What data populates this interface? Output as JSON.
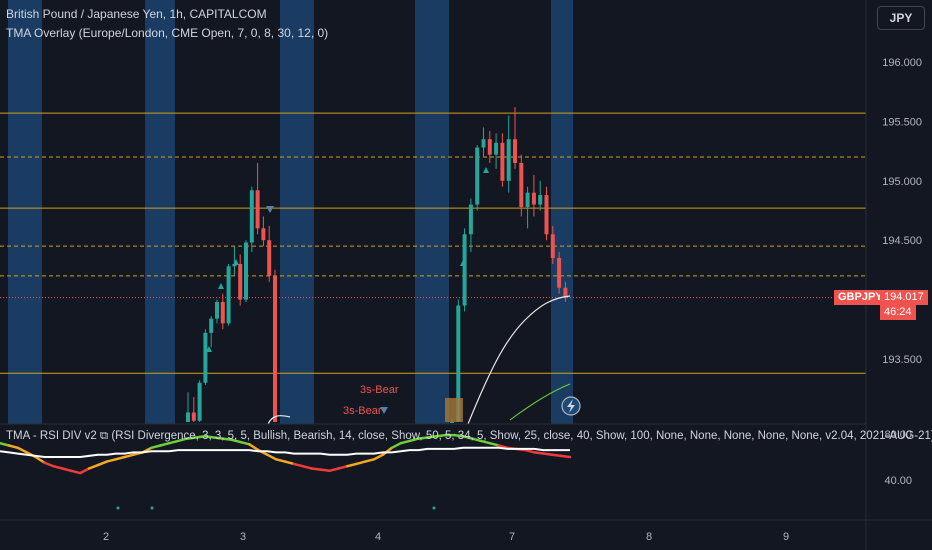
{
  "header": {
    "title": "British Pound / Japanese Yen, 1h, CAPITALCOM",
    "overlay": "TMA Overlay (Europe/London, CME Open, 7, 0, 8, 30, 12, 0)",
    "currency": "JPY"
  },
  "price_axis": {
    "labels": [
      "196.000",
      "195.500",
      "195.000",
      "194.500",
      "193.500"
    ],
    "values": [
      196.0,
      195.5,
      195.0,
      194.5,
      193.5
    ]
  },
  "symbol_tag": {
    "symbol": "GBPJPY",
    "price": "194.017",
    "countdown": "46:24"
  },
  "annotations": [
    "3s-Bear",
    "3s-Bear"
  ],
  "indicator": {
    "title": "TMA - RSI DIV v2 ⧉ (RSI Divergence, 3, 3, 5, 5, Bullish, Bearish, 14, close, Show, 50, 5, 34, 5, Show, 25, close, 40, Show, 100, None, None, None, None, None, v2.04, 2021-AUG-21)",
    "axis_labels": [
      "80.00",
      "40.00"
    ]
  },
  "time_axis": {
    "labels": [
      "2",
      "3",
      "4",
      "7",
      "8",
      "9"
    ]
  },
  "colors": {
    "bg": "#131722",
    "up": "#26a69a",
    "down": "#ef5350",
    "session": "#1e4a7a",
    "level": "#d4a017"
  },
  "chart_data": {
    "type": "candlestick",
    "symbol": "GBPJPY",
    "ylim": [
      193.0,
      196.3
    ],
    "levels": [
      195.57,
      194.77,
      193.38
    ],
    "dashed_levels": [
      195.2,
      194.45,
      194.2
    ],
    "last_price": 194.017,
    "candles": [
      {
        "o": 192.95,
        "h": 193.22,
        "l": 192.9,
        "c": 193.05
      },
      {
        "o": 193.05,
        "h": 193.18,
        "l": 192.95,
        "c": 192.98
      },
      {
        "o": 192.98,
        "h": 193.32,
        "l": 192.95,
        "c": 193.3
      },
      {
        "o": 193.3,
        "h": 193.75,
        "l": 193.28,
        "c": 193.72
      },
      {
        "o": 193.72,
        "h": 193.86,
        "l": 193.6,
        "c": 193.84
      },
      {
        "o": 193.84,
        "h": 194.0,
        "l": 193.8,
        "c": 193.98
      },
      {
        "o": 193.98,
        "h": 194.05,
        "l": 193.75,
        "c": 193.8
      },
      {
        "o": 193.8,
        "h": 194.3,
        "l": 193.78,
        "c": 194.28
      },
      {
        "o": 194.28,
        "h": 194.45,
        "l": 194.2,
        "c": 194.3
      },
      {
        "o": 194.3,
        "h": 194.38,
        "l": 193.95,
        "c": 194.0
      },
      {
        "o": 194.0,
        "h": 194.5,
        "l": 193.98,
        "c": 194.48
      },
      {
        "o": 194.48,
        "h": 194.95,
        "l": 194.4,
        "c": 194.92
      },
      {
        "o": 194.92,
        "h": 195.15,
        "l": 194.55,
        "c": 194.6
      },
      {
        "o": 194.6,
        "h": 194.7,
        "l": 194.45,
        "c": 194.5
      },
      {
        "o": 194.5,
        "h": 194.62,
        "l": 194.15,
        "c": 194.2
      },
      {
        "o": 194.2,
        "h": 194.25,
        "l": 192.8,
        "c": 192.9
      },
      {
        "o": 192.9,
        "h": 193.0,
        "l": 192.8,
        "c": 192.95
      },
      {
        "o": 192.95,
        "h": 194.0,
        "l": 192.9,
        "c": 193.95
      },
      {
        "o": 193.95,
        "h": 194.6,
        "l": 193.9,
        "c": 194.55
      },
      {
        "o": 194.55,
        "h": 194.85,
        "l": 194.4,
        "c": 194.8
      },
      {
        "o": 194.8,
        "h": 195.3,
        "l": 194.75,
        "c": 195.28
      },
      {
        "o": 195.28,
        "h": 195.45,
        "l": 195.2,
        "c": 195.35
      },
      {
        "o": 195.35,
        "h": 195.42,
        "l": 195.15,
        "c": 195.22
      },
      {
        "o": 195.22,
        "h": 195.4,
        "l": 195.1,
        "c": 195.32
      },
      {
        "o": 195.32,
        "h": 195.4,
        "l": 194.95,
        "c": 195.0
      },
      {
        "o": 195.0,
        "h": 195.55,
        "l": 194.9,
        "c": 195.35
      },
      {
        "o": 195.35,
        "h": 195.62,
        "l": 195.1,
        "c": 195.15
      },
      {
        "o": 195.15,
        "h": 195.22,
        "l": 194.7,
        "c": 194.78
      },
      {
        "o": 194.78,
        "h": 194.95,
        "l": 194.6,
        "c": 194.9
      },
      {
        "o": 194.9,
        "h": 195.05,
        "l": 194.7,
        "c": 194.8
      },
      {
        "o": 194.8,
        "h": 195.0,
        "l": 194.75,
        "c": 194.88
      },
      {
        "o": 194.88,
        "h": 194.95,
        "l": 194.5,
        "c": 194.55
      },
      {
        "o": 194.55,
        "h": 194.62,
        "l": 194.3,
        "c": 194.35
      },
      {
        "o": 194.35,
        "h": 194.4,
        "l": 194.05,
        "c": 194.1
      },
      {
        "o": 194.1,
        "h": 194.15,
        "l": 193.98,
        "c": 194.017
      }
    ],
    "rsi": {
      "ylim": [
        25,
        95
      ],
      "values": [
        72,
        70,
        68,
        64,
        60,
        55,
        52,
        50,
        48,
        46,
        50,
        53,
        56,
        58,
        60,
        62,
        64,
        68,
        70,
        72,
        74,
        76,
        77,
        78,
        77,
        76,
        75,
        73,
        71,
        66,
        62,
        58,
        56,
        54,
        52,
        50,
        49,
        48,
        50,
        52,
        54,
        56,
        58,
        62,
        68,
        72,
        74,
        76,
        77,
        78,
        79,
        79,
        78,
        76,
        74,
        72,
        70,
        68,
        67,
        66,
        64,
        63,
        62,
        61,
        60
      ],
      "ma": [
        65,
        64,
        63,
        62,
        61,
        60,
        60,
        60,
        60,
        60,
        61,
        62,
        62,
        63,
        63,
        64,
        64,
        65,
        65,
        65,
        66,
        66,
        66,
        66,
        66,
        66,
        66,
        66,
        66,
        65,
        65,
        64,
        64,
        63,
        63,
        63,
        63,
        62,
        62,
        62,
        63,
        63,
        63,
        64,
        64,
        65,
        66,
        66,
        67,
        67,
        67,
        67,
        68,
        68,
        68,
        68,
        68,
        67,
        67,
        67,
        67,
        66,
        66,
        66,
        66
      ]
    }
  }
}
